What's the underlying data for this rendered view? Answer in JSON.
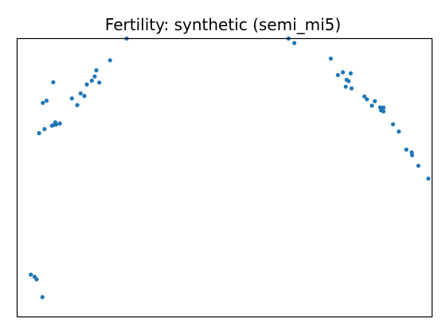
{
  "chart_data": {
    "type": "scatter",
    "title": "Fertility: synthetic (semi_mi5)",
    "xlabel": "",
    "ylabel": "",
    "xlim": [
      0,
      100
    ],
    "ylim": [
      0,
      100
    ],
    "x_ticks": [],
    "y_ticks": [],
    "grid": false,
    "legend": "none",
    "marker_color": "#1f77b4",
    "series": [
      {
        "points": [
          [
            3.3,
            15.2
          ],
          [
            4.2,
            14.4
          ],
          [
            4.7,
            13.5
          ],
          [
            6.1,
            7.1
          ],
          [
            5.3,
            66.0
          ],
          [
            6.6,
            67.5
          ],
          [
            6.2,
            76.9
          ],
          [
            7.1,
            77.7
          ],
          [
            8.7,
            84.3
          ],
          [
            8.4,
            68.7
          ],
          [
            8.9,
            69.0
          ],
          [
            9.4,
            69.1
          ],
          [
            9.2,
            69.9
          ],
          [
            10.3,
            69.5
          ],
          [
            13.2,
            78.5
          ],
          [
            14.5,
            76.1
          ],
          [
            15.3,
            80.3
          ],
          [
            16.2,
            79.4
          ],
          [
            16.8,
            83.5
          ],
          [
            18.0,
            84.9
          ],
          [
            18.7,
            86.4
          ],
          [
            19.1,
            88.6
          ],
          [
            19.8,
            84.2
          ],
          [
            22.4,
            92.2
          ],
          [
            26.4,
            100.0
          ],
          [
            65.4,
            100.0
          ],
          [
            66.8,
            98.4
          ],
          [
            75.6,
            92.8
          ],
          [
            77.3,
            86.9
          ],
          [
            78.5,
            87.9
          ],
          [
            79.4,
            85.2
          ],
          [
            79.9,
            84.7
          ],
          [
            80.4,
            87.5
          ],
          [
            79.2,
            82.7
          ],
          [
            80.6,
            82.1
          ],
          [
            83.7,
            79.2
          ],
          [
            84.3,
            78.2
          ],
          [
            86.2,
            77.5
          ],
          [
            85.5,
            75.9
          ],
          [
            87.5,
            75.3
          ],
          [
            88.3,
            75.2
          ],
          [
            87.7,
            74.2
          ],
          [
            88.3,
            73.8
          ],
          [
            90.6,
            69.2
          ],
          [
            92.0,
            66.6
          ],
          [
            93.8,
            60.1
          ],
          [
            95.1,
            59.1
          ],
          [
            95.2,
            58.1
          ],
          [
            96.7,
            54.3
          ],
          [
            99.1,
            49.7
          ]
        ]
      }
    ]
  }
}
